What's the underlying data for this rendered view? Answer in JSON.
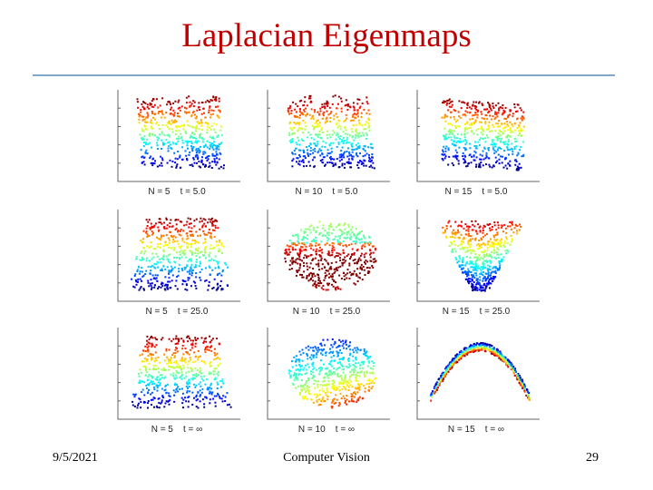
{
  "slide": {
    "title": "Laplacian Eigenmaps",
    "date": "9/5/2021",
    "footer_text": "Computer Vision",
    "page_number": "29"
  },
  "colors": {
    "title": "#c00000",
    "rule": "#7fa7c9",
    "colormap": "jet"
  },
  "panels": [
    {
      "label": "N = 5    t = 5.0",
      "shape": "sheet-top-ragged"
    },
    {
      "label": "N = 10    t = 5.0",
      "shape": "sheet-top-ragged"
    },
    {
      "label": "N = 15    t = 5.0",
      "shape": "sheet-tilted"
    },
    {
      "label": "N = 5    t = 25.0",
      "shape": "sheet-loops"
    },
    {
      "label": "N = 10    t = 25.0",
      "shape": "blob-inverted"
    },
    {
      "label": "N = 15    t = 25.0",
      "shape": "funnel"
    },
    {
      "label": "N = 5    t = ∞",
      "shape": "sheet-loops"
    },
    {
      "label": "N = 10    t = ∞",
      "shape": "blob-round"
    },
    {
      "label": "N = 15    t = ∞",
      "shape": "parabola"
    }
  ]
}
